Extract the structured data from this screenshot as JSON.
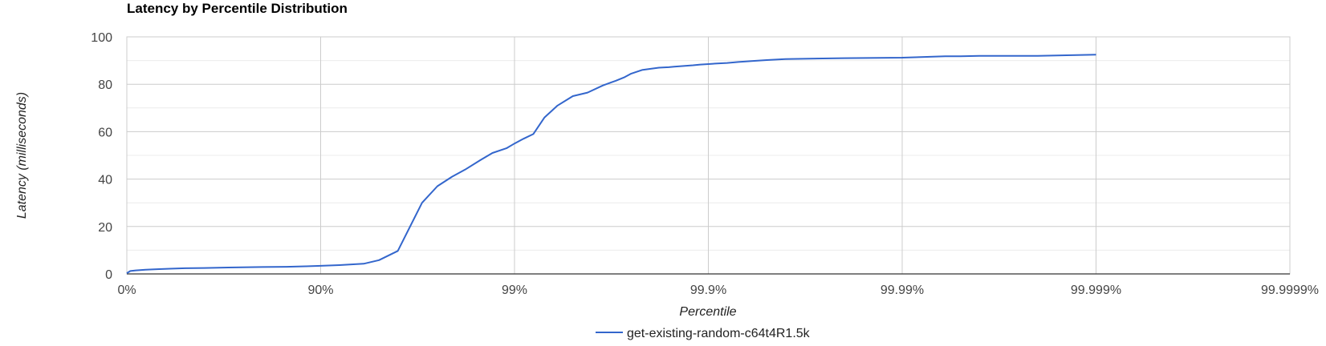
{
  "chart_data": {
    "type": "line",
    "title": "Latency by Percentile Distribution",
    "xlabel": "Percentile",
    "ylabel": "Latency (milliseconds)",
    "x_scale": "log-percentile",
    "x_ticks": [
      "0%",
      "90%",
      "99%",
      "99.9%",
      "99.99%",
      "99.999%",
      "99.9999%"
    ],
    "y_ticks": [
      "0",
      "20",
      "40",
      "60",
      "80",
      "100"
    ],
    "ylim": [
      0,
      100
    ],
    "grid": true,
    "legend_position": "bottom",
    "series": [
      {
        "name": "get-existing-random-c64t4R1.5k",
        "color": "#3366cc",
        "x": [
          0,
          4,
          10,
          20,
          30,
          40,
          50,
          60,
          70,
          80,
          85,
          88,
          90,
          92,
          94,
          95,
          96,
          97,
          97.5,
          97.9,
          98.2,
          98.5,
          98.7,
          98.9,
          99.0,
          99.1,
          99.2,
          99.3,
          99.4,
          99.5,
          99.58,
          99.65,
          99.7,
          99.73,
          99.75,
          99.78,
          99.8,
          99.82,
          99.84,
          99.85,
          99.87,
          99.88,
          99.89,
          99.9,
          99.91,
          99.92,
          99.93,
          99.94,
          99.95,
          99.96,
          99.97,
          99.98,
          99.99,
          99.992,
          99.994,
          99.995,
          99.996,
          99.997,
          99.998,
          99.9985,
          99.999
        ],
        "values": [
          0.3,
          1.2,
          1.5,
          1.8,
          2.0,
          2.2,
          2.4,
          2.5,
          2.7,
          2.9,
          3.0,
          3.2,
          3.4,
          3.7,
          4.3,
          5.8,
          9.7,
          30.0,
          37.0,
          41.0,
          44.0,
          48.0,
          51.0,
          53.0,
          55.0,
          57.0,
          59.0,
          66.0,
          71.0,
          75.0,
          76.5,
          79.5,
          81.5,
          83.0,
          84.5,
          86.0,
          86.5,
          87.0,
          87.2,
          87.4,
          87.8,
          88.0,
          88.3,
          88.5,
          88.8,
          89.0,
          89.4,
          89.8,
          90.2,
          90.6,
          90.8,
          91.0,
          91.2,
          91.5,
          91.8,
          91.8,
          92.0,
          92.0,
          92.0,
          92.2,
          92.5
        ]
      }
    ]
  }
}
